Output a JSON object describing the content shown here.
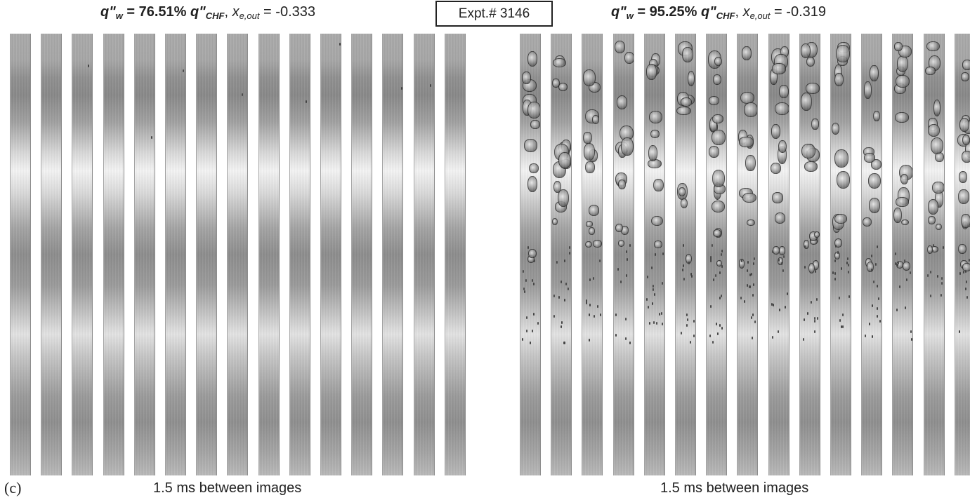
{
  "header": {
    "left": {
      "q_symbol": "q\"",
      "q_sub": "w",
      "equals": " = ",
      "percent": "76.51%",
      "chf_symbol": "q\"",
      "chf_sub": "CHF",
      "comma": ", ",
      "x_symbol": "x",
      "x_sub": "e,out",
      "x_equals": " = ",
      "x_value": "-0.333"
    },
    "expt_label": "Expt.# 3146",
    "right": {
      "q_symbol": "q\"",
      "q_sub": "w",
      "equals": " = ",
      "percent": "95.25%",
      "chf_symbol": "q\"",
      "chf_sub": "CHF",
      "comma": ", ",
      "x_symbol": "x",
      "x_sub": "e,out",
      "x_equals": " = ",
      "x_value": "-0.319"
    }
  },
  "panels": {
    "left": {
      "strip_count": 15,
      "vapor": "none"
    },
    "right": {
      "strip_count": 15,
      "vapor": "bubbles"
    }
  },
  "panel_label": "(c)",
  "captions": {
    "left": "1.5 ms between images",
    "right": "1.5 ms between images"
  },
  "colors": {
    "background": "#ffffff",
    "text": "#222222",
    "strip_dark": "#888888",
    "strip_light": "#f3f3f3"
  }
}
